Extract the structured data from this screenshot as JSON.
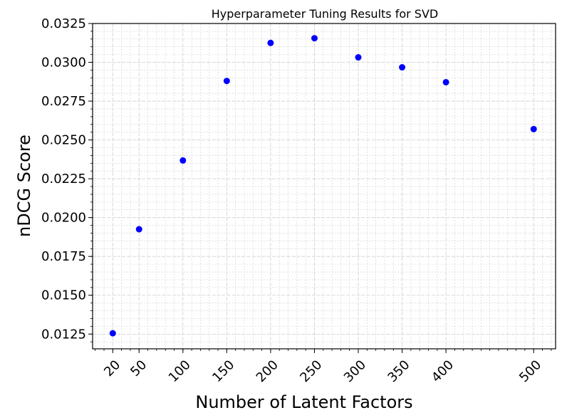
{
  "chart_data": {
    "type": "scatter",
    "title": "Hyperparameter Tuning Results for SVD",
    "xlabel": "Number of Latent Factors",
    "ylabel": "nDCG Score",
    "x": [
      20,
      50,
      100,
      150,
      200,
      250,
      300,
      350,
      400,
      500
    ],
    "y": [
      0.01255,
      0.01925,
      0.02368,
      0.0288,
      0.03125,
      0.03155,
      0.03032,
      0.02968,
      0.02872,
      0.0257
    ],
    "x_ticks": [
      20,
      50,
      100,
      150,
      200,
      250,
      300,
      350,
      400,
      500
    ],
    "x_tick_labels": [
      "20",
      "50",
      "100",
      "150",
      "200",
      "250",
      "300",
      "350",
      "400",
      "500"
    ],
    "y_ticks": [
      0.0125,
      0.015,
      0.0175,
      0.02,
      0.0225,
      0.025,
      0.0275,
      0.03,
      0.0325
    ],
    "y_tick_labels": [
      "0.0125",
      "0.0150",
      "0.0175",
      "0.0200",
      "0.0225",
      "0.0250",
      "0.0275",
      "0.0300",
      "0.0325"
    ],
    "xlim": [
      -3,
      525
    ],
    "ylim": [
      0.01155,
      0.0325
    ],
    "grid": true,
    "minor_grid": true,
    "marker_color": "#0000ff",
    "grid_color": "#cfcfcf"
  }
}
